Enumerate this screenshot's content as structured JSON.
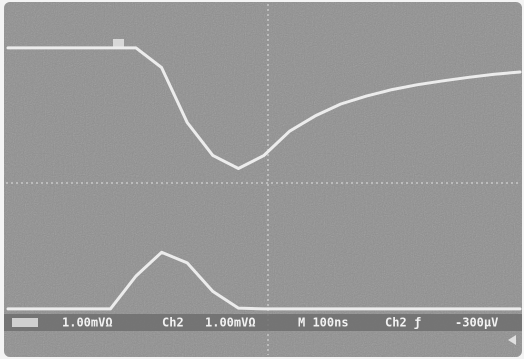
{
  "chart_data": {
    "type": "line",
    "x": [
      0,
      0.5,
      1,
      1.5,
      2,
      2.5,
      3,
      3.5,
      4,
      4.5,
      5,
      5.5,
      6,
      6.5,
      7,
      7.5,
      8,
      8.5,
      9,
      9.5,
      10
    ],
    "series": [
      {
        "color": "#ececec",
        "values": [
          3.0,
          3.0,
          3.0,
          3.0,
          3.0,
          3.0,
          2.55,
          1.3,
          0.55,
          0.25,
          0.55,
          1.1,
          1.45,
          1.72,
          1.9,
          2.05,
          2.16,
          2.25,
          2.33,
          2.4,
          2.45
        ]
      },
      {
        "color": "#ececec",
        "values": [
          -2.95,
          -2.95,
          -2.95,
          -2.95,
          -2.95,
          -2.2,
          -1.66,
          -1.9,
          -2.55,
          -2.93,
          -2.95,
          -2.95,
          -2.95,
          -2.95,
          -2.95,
          -2.95,
          -2.95,
          -2.95,
          -2.95,
          -2.95,
          -2.95
        ]
      }
    ],
    "xlim": [
      0,
      10
    ],
    "ylim": [
      -4,
      4
    ],
    "readouts": [
      "1.00mVΩ",
      "Ch2",
      "1.00mVΩ",
      "M 100ns",
      "Ch2 ƒ",
      "-300μV"
    ]
  }
}
